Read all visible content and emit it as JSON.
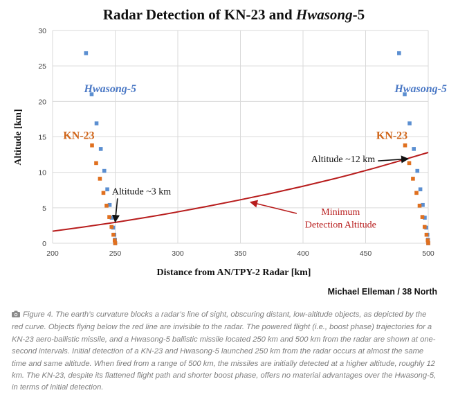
{
  "chart_data": {
    "type": "scatter",
    "title": {
      "prefix": "Radar Detection of KN-23 and ",
      "italic": "Hwasong",
      "suffix": "-5"
    },
    "xlabel": "Distance from AN/TPY-2 Radar [km]",
    "ylabel": "Altitude [km]",
    "xlim": [
      200,
      500
    ],
    "ylim": [
      0,
      30
    ],
    "xticks": [
      200,
      250,
      300,
      350,
      400,
      450,
      500
    ],
    "yticks": [
      0,
      5,
      10,
      15,
      20,
      25,
      30
    ],
    "grid": true,
    "series": [
      {
        "name": "Hwasong-5",
        "group": "launch-250",
        "color": "#5b8fd1",
        "x": [
          250.0,
          249.8,
          249.3,
          248.4,
          247.2,
          245.6,
          243.7,
          241.3,
          238.5,
          235.1,
          231.2,
          226.7
        ],
        "y": [
          0.0,
          0.5,
          1.2,
          2.2,
          3.6,
          5.4,
          7.6,
          10.2,
          13.3,
          16.9,
          21.0,
          26.8
        ]
      },
      {
        "name": "KN-23",
        "group": "launch-250",
        "color": "#e0701f",
        "x": [
          250.0,
          249.6,
          248.6,
          247.1,
          245.3,
          243.1,
          240.6,
          237.8,
          234.8,
          231.5
        ],
        "y": [
          0.0,
          0.4,
          1.2,
          2.3,
          3.7,
          5.3,
          7.1,
          9.1,
          11.3,
          13.8
        ]
      },
      {
        "name": "Hwasong-5",
        "group": "launch-500",
        "color": "#5b8fd1",
        "x": [
          500.0,
          499.8,
          499.3,
          498.4,
          497.2,
          495.6,
          493.7,
          491.3,
          488.5,
          485.1,
          481.2,
          476.7
        ],
        "y": [
          0.0,
          0.5,
          1.2,
          2.2,
          3.6,
          5.4,
          7.6,
          10.2,
          13.3,
          16.9,
          21.0,
          26.8
        ]
      },
      {
        "name": "KN-23",
        "group": "launch-500",
        "color": "#e0701f",
        "x": [
          500.0,
          499.6,
          498.6,
          497.1,
          495.3,
          493.1,
          490.6,
          487.8,
          484.8,
          481.5
        ],
        "y": [
          0.0,
          0.4,
          1.2,
          2.3,
          3.7,
          5.3,
          7.1,
          9.1,
          11.3,
          13.8
        ]
      },
      {
        "name": "Minimum Detection Altitude",
        "type": "line",
        "color": "#b81d1d",
        "x": [
          200,
          250,
          300,
          350,
          400,
          450,
          500
        ],
        "y": [
          1.7,
          2.9,
          4.4,
          6.1,
          8.0,
          10.2,
          12.8
        ]
      }
    ],
    "series_labels": [
      {
        "text": "Hwasong-5",
        "color": "#4a78c5",
        "italic": true,
        "x": 246,
        "y": 21.3
      },
      {
        "text": "KN-23",
        "color": "#d0661a",
        "italic": false,
        "x": 221,
        "y": 14.7
      },
      {
        "text": "Hwasong-5",
        "color": "#4a78c5",
        "italic": true,
        "x": 494,
        "y": 21.3
      },
      {
        "text": "KN-23",
        "color": "#d0661a",
        "italic": false,
        "x": 471,
        "y": 14.7
      }
    ],
    "annotations": [
      {
        "text": "Altitude ~3 km",
        "color": "#111111",
        "x": 271,
        "y": 7.4,
        "arrow_to": [
          250,
          3.0
        ],
        "arrow_color": "#111111"
      },
      {
        "text": "Altitude ~12 km",
        "color": "#111111",
        "x": 432,
        "y": 11.9,
        "arrow_to": [
          484,
          11.9
        ],
        "arrow_color": "#111111"
      },
      {
        "text": "Minimum",
        "color": "#b81d1d",
        "x": 430,
        "y": 4.5
      },
      {
        "text": "Detection Altitude",
        "color": "#b81d1d",
        "x": 430,
        "y": 2.7,
        "arrow_to": [
          358,
          5.8
        ],
        "arrow_from": [
          395,
          4.2
        ],
        "arrow_color": "#b81d1d"
      }
    ]
  },
  "credit": "Michael Elleman / 38 North",
  "caption": {
    "icon": "camera-icon",
    "lead": "Figure 4.",
    "body": " The earth’s curvature blocks a radar’s line of sight, obscuring distant, low-altitude objects, as depicted by the red curve. Objects flying below the red line are invisible to the radar. The powered flight (i.e., boost phase) trajectories for a KN-23 aero-ballistic missile, and a Hwasong-5 ballistic missile located 250 km and 500 km from the radar are shown at one-second intervals. Initial detection of a KN-23 and Hwasong-5 launched 250 km from the radar occurs at almost the same time and same altitude. When fired from a range of 500 km, the missiles are initially detected at a higher altitude, roughly 12 km. The KN-23, despite its flattened flight path and shorter boost phase, offers no material advantages over the Hwasong-5, in terms of initial detection."
  }
}
